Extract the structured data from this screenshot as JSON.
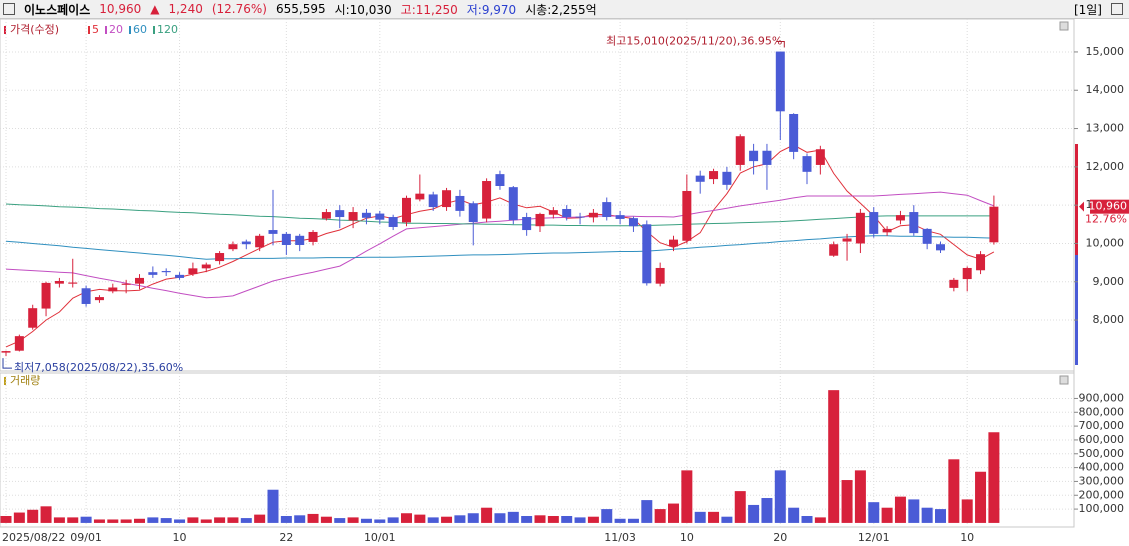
{
  "header": {
    "name": "이노스페이스",
    "price": "10,960",
    "arrow": "▲",
    "change": "1,240",
    "change_pct": "(12.76%)",
    "volume": "655,595",
    "open": "시:10,030",
    "high": "고:11,250",
    "low": "저:9,970",
    "market_cap": "시총:2,255억",
    "period": "[1일]"
  },
  "chart_data": [
    {
      "type": "candlestick",
      "legend_title": "가격(수정)",
      "up_color": "#d7213b",
      "down_color": "#4a5bd6",
      "ylim": [
        6670,
        15860
      ],
      "yticks": [
        {
          "value": 8000,
          "label": "8,000"
        },
        {
          "value": 9000,
          "label": "9,000"
        },
        {
          "value": 10000,
          "label": "10,000"
        },
        {
          "value": 11000,
          "label": "11,000"
        },
        {
          "value": 12000,
          "label": "12,000"
        },
        {
          "value": 13000,
          "label": "13,000"
        },
        {
          "value": 14000,
          "label": "14,000"
        },
        {
          "value": 15000,
          "label": "15,000"
        }
      ],
      "last_change_label": "12.76%",
      "annotations": [
        {
          "text": "최고15,010(2025/11/20),36.95%",
          "index": 58,
          "value": 15010
        },
        {
          "text": "최저7,058(2025/08/22),35.60%",
          "index": 0,
          "value": 7058
        }
      ],
      "categories": [
        "2025/08/22",
        null,
        null,
        null,
        null,
        null,
        "09/01",
        null,
        null,
        null,
        null,
        null,
        null,
        "10",
        null,
        null,
        null,
        null,
        null,
        null,
        null,
        "22",
        null,
        null,
        null,
        null,
        null,
        null,
        "10/01",
        null,
        null,
        null,
        null,
        null,
        null,
        null,
        null,
        null,
        null,
        null,
        null,
        null,
        null,
        null,
        null,
        null,
        "11/03",
        null,
        null,
        null,
        null,
        "10",
        null,
        null,
        null,
        null,
        null,
        null,
        "20",
        null,
        null,
        null,
        null,
        null,
        null,
        "12/01",
        null,
        null,
        null,
        null,
        null,
        null,
        "10",
        null,
        null
      ],
      "open": [
        7150,
        7200,
        7800,
        8300,
        8950,
        8950,
        8830,
        8520,
        8750,
        8920,
        8950,
        9250,
        9280,
        9180,
        9200,
        9350,
        9540,
        9850,
        10050,
        9900,
        10350,
        10250,
        10200,
        10040,
        10650,
        10870,
        10600,
        10800,
        10780,
        10690,
        10550,
        11150,
        11280,
        10950,
        11240,
        11050,
        10650,
        11810,
        11470,
        10690,
        10450,
        10750,
        10900,
        10700,
        10680,
        11080,
        10740,
        10660,
        10500,
        8950,
        9920,
        10070,
        11770,
        11680,
        11870,
        12050,
        12420,
        12420,
        15010,
        13380,
        12280,
        12050,
        9680,
        10050,
        10000,
        10820,
        10290,
        10600,
        10820,
        10380,
        9980,
        8840,
        9070,
        9300,
        10030
      ],
      "high": [
        7200,
        7620,
        8400,
        9000,
        9100,
        9600,
        8900,
        8650,
        8950,
        9050,
        9200,
        9400,
        9350,
        9250,
        9500,
        9500,
        9800,
        10050,
        10100,
        10250,
        11400,
        10300,
        10250,
        10350,
        10900,
        11000,
        10950,
        10900,
        10850,
        10750,
        11250,
        11800,
        11350,
        11450,
        11400,
        11100,
        11700,
        11900,
        11500,
        10800,
        10800,
        10950,
        11000,
        10800,
        10900,
        11200,
        10850,
        10700,
        10600,
        9500,
        10200,
        11800,
        11900,
        11950,
        12000,
        12850,
        12600,
        12600,
        15010,
        13400,
        12350,
        12550,
        10050,
        10250,
        10900,
        10950,
        10450,
        10850,
        11000,
        10400,
        10050,
        9100,
        9400,
        9800,
        11250
      ],
      "low": [
        7058,
        7180,
        7750,
        8100,
        8850,
        8850,
        8350,
        8450,
        8700,
        8700,
        8800,
        9100,
        9150,
        9050,
        9150,
        9250,
        9450,
        9800,
        9850,
        9800,
        9950,
        9700,
        9800,
        9950,
        10600,
        10400,
        10400,
        10500,
        10500,
        10350,
        10450,
        11100,
        10850,
        10850,
        10700,
        9950,
        10550,
        11400,
        10500,
        10200,
        10300,
        10650,
        10600,
        10500,
        10550,
        10600,
        10500,
        10300,
        8900,
        8880,
        9800,
        10000,
        11300,
        11550,
        11400,
        11900,
        11800,
        11400,
        12700,
        12200,
        11550,
        11800,
        9650,
        9550,
        9750,
        10150,
        10200,
        10500,
        10200,
        9850,
        9750,
        8750,
        8750,
        9200,
        9970
      ],
      "close": [
        7190,
        7580,
        8310,
        8970,
        9020,
        8980,
        8420,
        8600,
        8850,
        8950,
        9100,
        9180,
        9250,
        9100,
        9350,
        9450,
        9750,
        9980,
        9980,
        10200,
        10250,
        9960,
        9960,
        10300,
        10820,
        10690,
        10820,
        10670,
        10620,
        10430,
        11190,
        11300,
        10950,
        11390,
        10850,
        10560,
        11630,
        11500,
        10610,
        10350,
        10770,
        10870,
        10690,
        10690,
        10800,
        10690,
        10640,
        10450,
        8960,
        9360,
        10100,
        11370,
        11610,
        11890,
        11530,
        12800,
        12150,
        12050,
        13450,
        12390,
        11870,
        12460,
        9980,
        10130,
        10800,
        10250,
        10380,
        10740,
        10270,
        9990,
        9820,
        9050,
        9360,
        9720,
        10960
      ],
      "series": [
        {
          "name": "5",
          "color": "#e0303a",
          "values": [
            7300,
            7450,
            7700,
            8000,
            8210,
            8570,
            8740,
            8800,
            8770,
            8760,
            8780,
            8940,
            9070,
            9120,
            9200,
            9270,
            9380,
            9530,
            9700,
            9870,
            10030,
            10070,
            10070,
            10130,
            10260,
            10350,
            10510,
            10660,
            10720,
            10650,
            10750,
            10840,
            10900,
            11050,
            11140,
            11010,
            11080,
            11190,
            11030,
            10930,
            10970,
            10820,
            10660,
            10670,
            10760,
            10750,
            10700,
            10650,
            10310,
            10020,
            9900,
            10050,
            10280,
            10870,
            11300,
            11840,
            12000,
            12080,
            12400,
            12570,
            12380,
            12440,
            11830,
            11370,
            11050,
            10720,
            10310,
            10460,
            10490,
            10330,
            10240,
            9970,
            9700,
            9590,
            9780
          ]
        },
        {
          "name": "20",
          "color": "#c24ec2",
          "values": [
            9330,
            9310,
            9290,
            9270,
            9250,
            9230,
            9160,
            9090,
            9030,
            8960,
            8900,
            8830,
            8770,
            8700,
            8640,
            8580,
            8600,
            8630,
            8760,
            8890,
            9020,
            9100,
            9180,
            9250,
            9330,
            9410,
            9600,
            9800,
            9990,
            10190,
            10380,
            10410,
            10440,
            10470,
            10500,
            10530,
            10560,
            10580,
            10610,
            10630,
            10660,
            10670,
            10680,
            10690,
            10710,
            10720,
            10710,
            10710,
            10700,
            10700,
            10690,
            10750,
            10810,
            10860,
            10920,
            10980,
            11030,
            11080,
            11130,
            11190,
            11240,
            11240,
            11240,
            11240,
            11240,
            11240,
            11260,
            11280,
            11300,
            11320,
            11340,
            11300,
            11260,
            11120,
            10980
          ]
        },
        {
          "name": "60",
          "color": "#2f8fbf",
          "values": [
            10060,
            10030,
            10000,
            9970,
            9940,
            9900,
            9870,
            9840,
            9810,
            9780,
            9750,
            9720,
            9690,
            9660,
            9620,
            9590,
            9600,
            9600,
            9610,
            9610,
            9610,
            9620,
            9620,
            9620,
            9630,
            9630,
            9630,
            9640,
            9640,
            9640,
            9650,
            9660,
            9670,
            9680,
            9690,
            9700,
            9700,
            9710,
            9720,
            9730,
            9740,
            9750,
            9750,
            9760,
            9770,
            9780,
            9790,
            9790,
            9800,
            9820,
            9850,
            9870,
            9900,
            9920,
            9950,
            9970,
            10000,
            10020,
            10050,
            10070,
            10100,
            10120,
            10150,
            10170,
            10190,
            10200,
            10200,
            10190,
            10190,
            10180,
            10170,
            10160,
            10160,
            10150,
            10140
          ]
        },
        {
          "name": "120",
          "color": "#3aa080",
          "values": [
            11030,
            11010,
            11000,
            10980,
            10960,
            10950,
            10930,
            10910,
            10900,
            10880,
            10860,
            10850,
            10830,
            10810,
            10800,
            10780,
            10760,
            10750,
            10730,
            10710,
            10700,
            10680,
            10660,
            10650,
            10630,
            10610,
            10600,
            10580,
            10560,
            10550,
            10530,
            10530,
            10520,
            10520,
            10510,
            10510,
            10500,
            10500,
            10490,
            10490,
            10480,
            10480,
            10470,
            10470,
            10460,
            10460,
            10460,
            10460,
            10470,
            10480,
            10490,
            10500,
            10510,
            10520,
            10530,
            10540,
            10550,
            10560,
            10570,
            10590,
            10610,
            10630,
            10650,
            10670,
            10690,
            10710,
            10720,
            10720,
            10720,
            10720,
            10720,
            10720,
            10720,
            10720,
            10720
          ]
        }
      ]
    },
    {
      "type": "bar",
      "legend_title": "거래량",
      "ylim": [
        -29500,
        1084000
      ],
      "yticks": [
        {
          "value": 100000,
          "label": "100,000"
        },
        {
          "value": 200000,
          "label": "200,000"
        },
        {
          "value": 300000,
          "label": "300,000"
        },
        {
          "value": 400000,
          "label": "400,000"
        },
        {
          "value": 500000,
          "label": "500,000"
        },
        {
          "value": 600000,
          "label": "600,000"
        },
        {
          "value": 700000,
          "label": "700,000"
        },
        {
          "value": 800000,
          "label": "800,000"
        },
        {
          "value": 900000,
          "label": "900,000"
        }
      ],
      "values": [
        50000,
        75000,
        95000,
        120000,
        40000,
        40000,
        45000,
        25000,
        25000,
        25000,
        30000,
        40000,
        35000,
        25000,
        40000,
        25000,
        40000,
        40000,
        35000,
        60000,
        240000,
        50000,
        55000,
        65000,
        45000,
        35000,
        40000,
        30000,
        25000,
        40000,
        70000,
        60000,
        40000,
        45000,
        55000,
        70000,
        110000,
        70000,
        80000,
        50000,
        55000,
        50000,
        50000,
        40000,
        45000,
        100000,
        30000,
        30000,
        165000,
        100000,
        140000,
        380000,
        80000,
        80000,
        45000,
        230000,
        130000,
        180000,
        380000,
        110000,
        50000,
        40000,
        960000,
        310000,
        380000,
        150000,
        110000,
        190000,
        170000,
        110000,
        100000,
        460000,
        170000,
        370000,
        655595
      ]
    }
  ]
}
